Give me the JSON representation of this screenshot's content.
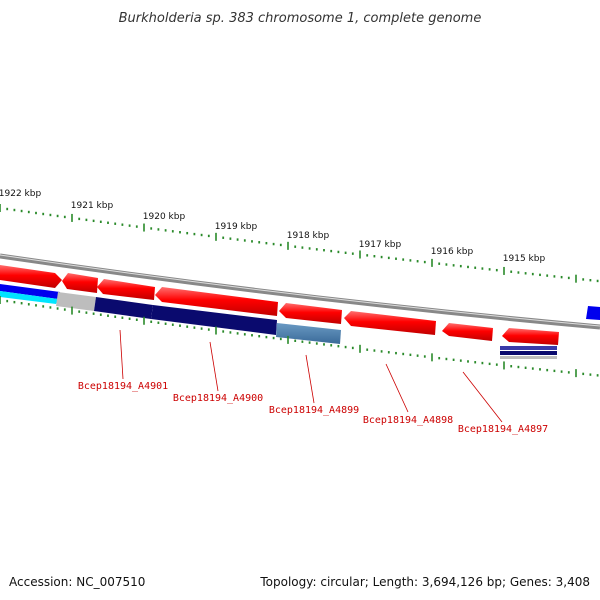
{
  "header": {
    "title": "Burkholderia sp. 383 chromosome 1, complete genome"
  },
  "scale": {
    "ticks": [
      "1922 kbp",
      "1921 kbp",
      "1920 kbp",
      "1919 kbp",
      "1918 kbp",
      "1917 kbp",
      "1916 kbp",
      "1915 kbp"
    ]
  },
  "genes": {
    "labels": [
      "Bcep18194_A4901",
      "Bcep18194_A4900",
      "Bcep18194_A4899",
      "Bcep18194_A4898",
      "Bcep18194_A4897"
    ]
  },
  "footer": {
    "accession": "Accession: NC_007510",
    "topology": "Topology: circular; Length: 3,694,126 bp; Genes: 3,408"
  },
  "colors": {
    "forward_gene": "#ff0000",
    "cds_dark": "#0a0a6e",
    "cds_steel": "#4a7aa8",
    "label_red": "#cc0000",
    "tick_green": "#2a8a2a",
    "backbone": "#888888"
  }
}
